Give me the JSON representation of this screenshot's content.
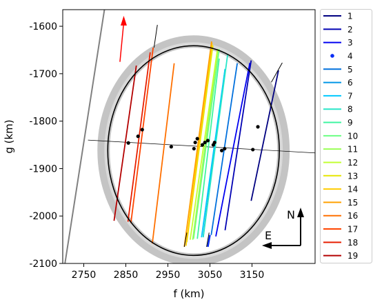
{
  "chart_data": {
    "type": "line",
    "title": "",
    "xlabel": "f (km)",
    "ylabel": "g (km)",
    "xlim": [
      2700,
      3300
    ],
    "ylim": [
      -2100,
      -1565
    ],
    "x_ticks": [
      2750,
      2850,
      2950,
      3050,
      3150
    ],
    "x_tick_labels": [
      "2750",
      "2850",
      "2950",
      "3050",
      "3150"
    ],
    "y_ticks": [
      -1600,
      -1700,
      -1800,
      -1900,
      -2000,
      -2100
    ],
    "y_tick_labels": [
      "-1600",
      "-1700",
      "-1800",
      "-1900",
      "-2000",
      "-2100"
    ],
    "grid": false,
    "legend_position": "right",
    "legend_labels": [
      "1",
      "2",
      "3",
      "4",
      "5",
      "6",
      "7",
      "8",
      "9",
      "10",
      "11",
      "12",
      "13",
      "14",
      "15",
      "16",
      "17",
      "18",
      "19"
    ],
    "series_colors": [
      "#000080",
      "#0000b3",
      "#0000f0",
      "#0a2ef5",
      "#0070dd",
      "#0096e6",
      "#00c8ff",
      "#28e6c8",
      "#3cf5a0",
      "#6aff82",
      "#9aff56",
      "#c2ff30",
      "#e6e600",
      "#ffcc00",
      "#ffa000",
      "#ff7000",
      "#ff4500",
      "#e61e00",
      "#b40000"
    ],
    "ellipse": {
      "center": [
        3011,
        -1862
      ],
      "semi_axis_f": 204,
      "semi_axis_g": 221
    },
    "major_axis_line": [
      [
        2760,
        -1840
      ],
      [
        3300,
        -1867
      ]
    ],
    "chords": [
      {
        "series": "1",
        "from": [
          3148,
          -1968
        ],
        "to": [
          3213,
          -1693
        ]
      },
      {
        "series": "2",
        "from": [
          3086,
          -2030
        ],
        "to": [
          3148,
          -1672
        ]
      },
      {
        "series": "3",
        "from": [
          3064,
          -2043
        ],
        "to": [
          3145,
          -1677
        ]
      },
      {
        "series": "4",
        "from": [
          3045,
          -2065
        ],
        "to": [
          3050,
          -2040
        ]
      },
      {
        "series": "5",
        "from": [
          3053,
          -2040
        ],
        "to": [
          3115,
          -1678
        ]
      },
      {
        "series": "6",
        "from": [
          3034,
          -2043
        ],
        "to": [
          3086,
          -1690
        ]
      },
      {
        "series": "7",
        "from": [
          3030,
          -2045
        ],
        "to": [
          3086,
          -1690
        ]
      },
      {
        "series": "8",
        "from": [
          3034,
          -2045
        ],
        "to": [
          3092,
          -1660
        ]
      },
      {
        "series": "9",
        "from": [
          3020,
          -2048
        ],
        "to": [
          3072,
          -1668
        ]
      },
      {
        "series": "10",
        "from": [
          3011,
          -2048
        ],
        "to": [
          3072,
          -1648
        ]
      },
      {
        "series": "11",
        "from": [
          3009,
          -2050
        ],
        "to": [
          3069,
          -1648
        ]
      },
      {
        "series": "12",
        "from": [
          3003,
          -2050
        ],
        "to": [
          3068,
          -1648
        ]
      },
      {
        "series": "13",
        "from": [
          2995,
          -2055
        ],
        "to": [
          3057,
          -1640
        ]
      },
      {
        "series": "14",
        "from": [
          2993,
          -2063
        ],
        "to": [
          3055,
          -1635
        ]
      },
      {
        "series": "15",
        "from": [
          2989,
          -2065
        ],
        "to": [
          3054,
          -1632
        ]
      },
      {
        "series": "16",
        "from": [
          2913,
          -2058
        ],
        "to": [
          2965,
          -1678
        ]
      },
      {
        "series": "17",
        "from": [
          2862,
          -2015
        ],
        "to": [
          2915,
          -1645
        ]
      },
      {
        "series": "18",
        "from": [
          2855,
          -2012
        ],
        "to": [
          2908,
          -1655
        ]
      },
      {
        "series": "19",
        "from": [
          2822,
          -2010
        ],
        "to": [
          2875,
          -1683
        ]
      }
    ],
    "dots": [
      {
        "f": 3164,
        "g": -1812
      },
      {
        "f": 3152,
        "g": -1860
      },
      {
        "f": 3085,
        "g": -1858
      },
      {
        "f": 3078,
        "g": -1862
      },
      {
        "f": 3061,
        "g": -1845
      },
      {
        "f": 3058,
        "g": -1850
      },
      {
        "f": 3045,
        "g": -1841
      },
      {
        "f": 3038,
        "g": -1845
      },
      {
        "f": 3032,
        "g": -1850
      },
      {
        "f": 3020,
        "g": -1837
      },
      {
        "f": 3015,
        "g": -1845
      },
      {
        "f": 3012,
        "g": -1858
      },
      {
        "f": 2958,
        "g": -1854
      },
      {
        "f": 2889,
        "g": -1818
      },
      {
        "f": 2879,
        "g": -1832
      },
      {
        "f": 2856,
        "g": -1846
      }
    ],
    "fainted_line": {
      "from": [
        2700,
        -2130
      ],
      "to": [
        2800,
        -1560
      ]
    },
    "red_arrow": {
      "from": [
        2836,
        -1675
      ],
      "to": [
        2845,
        -1578
      ]
    },
    "compass": {
      "north_label": "N",
      "east_label": "E"
    }
  }
}
